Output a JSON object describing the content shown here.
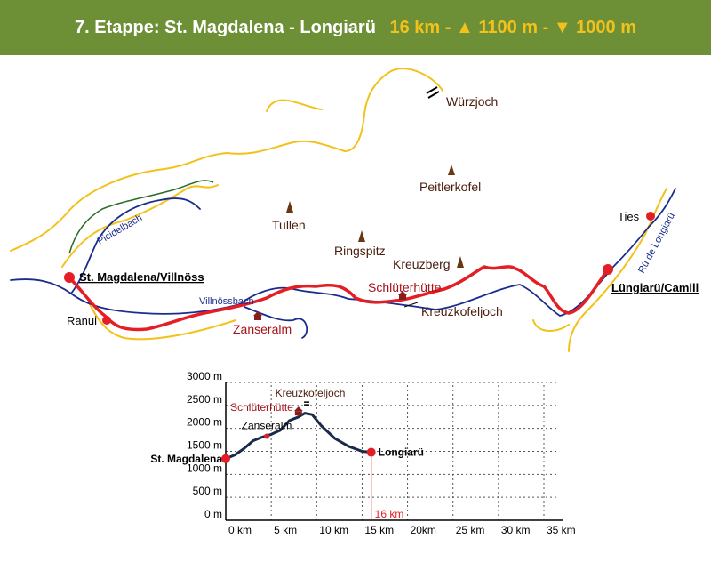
{
  "header": {
    "title": "7. Etappe: St. Magdalena - Longiarü",
    "stats": "16 km - ▲ 1100 m - ▼ 1000 m"
  },
  "map": {
    "peaks": [
      {
        "name": "Würzjoch"
      },
      {
        "name": "Peitlerkofel"
      },
      {
        "name": "Tullen"
      },
      {
        "name": "Ringspitz"
      },
      {
        "name": "Kreuzberg"
      },
      {
        "name": "Kreuzkofeljoch"
      }
    ],
    "huts": [
      {
        "name": "Schlüterhütte"
      },
      {
        "name": "Zanseralm"
      }
    ],
    "stage_points": [
      {
        "name": "St. Magdalena/Villnöss"
      },
      {
        "name": "Lüngiarü/Camill"
      }
    ],
    "villages": [
      {
        "name": "Ranui"
      },
      {
        "name": "Ties"
      }
    ],
    "streams": [
      {
        "name": "Picidelbach"
      },
      {
        "name": "Villnössbach"
      },
      {
        "name": "Rü de Longiarü"
      }
    ],
    "colors": {
      "route": "#e31e24",
      "road": "#f2c21b",
      "stream": "#1a2c8c",
      "path": "#2a6b2a",
      "peak": "#6b3510",
      "hut": "#8a1c1c"
    }
  },
  "chart_data": {
    "type": "line",
    "title": "",
    "xlabel": "",
    "ylabel": "",
    "x_ticks": [
      "0 km",
      "5 km",
      "10 km",
      "15 km",
      "20km",
      "25 km",
      "30 km",
      "35 km"
    ],
    "y_ticks": [
      "0 m",
      "500 m",
      "1000 m",
      "1500 m",
      "2000 m",
      "2500 m",
      "3000 m"
    ],
    "xlim": [
      0,
      35
    ],
    "ylim": [
      0,
      3000
    ],
    "grid": true,
    "series": [
      {
        "points": [
          [
            0,
            1340
          ],
          [
            1,
            1420
          ],
          [
            2,
            1560
          ],
          [
            3,
            1730
          ],
          [
            4,
            1810
          ],
          [
            5,
            1870
          ],
          [
            6,
            1960
          ],
          [
            7,
            2170
          ],
          [
            8,
            2250
          ],
          [
            8.7,
            2330
          ],
          [
            9.5,
            2300
          ],
          [
            10.5,
            2060
          ],
          [
            12,
            1780
          ],
          [
            13.5,
            1610
          ],
          [
            15,
            1500
          ],
          [
            16,
            1480
          ]
        ]
      }
    ],
    "markers": [
      {
        "label": "St. Magdalena",
        "x": 0,
        "y": 1340
      },
      {
        "label": "Zanseralm",
        "x": 4.5,
        "y": 1830
      },
      {
        "label": "Schlüterhütte",
        "x": 8,
        "y": 2300
      },
      {
        "label": "Kreuzkofeljoch",
        "x": 8.9,
        "y": 2340
      },
      {
        "label": "Longiarü",
        "x": 16,
        "y": 1480
      }
    ],
    "end_marker": {
      "label": "16 km",
      "x": 16
    }
  }
}
